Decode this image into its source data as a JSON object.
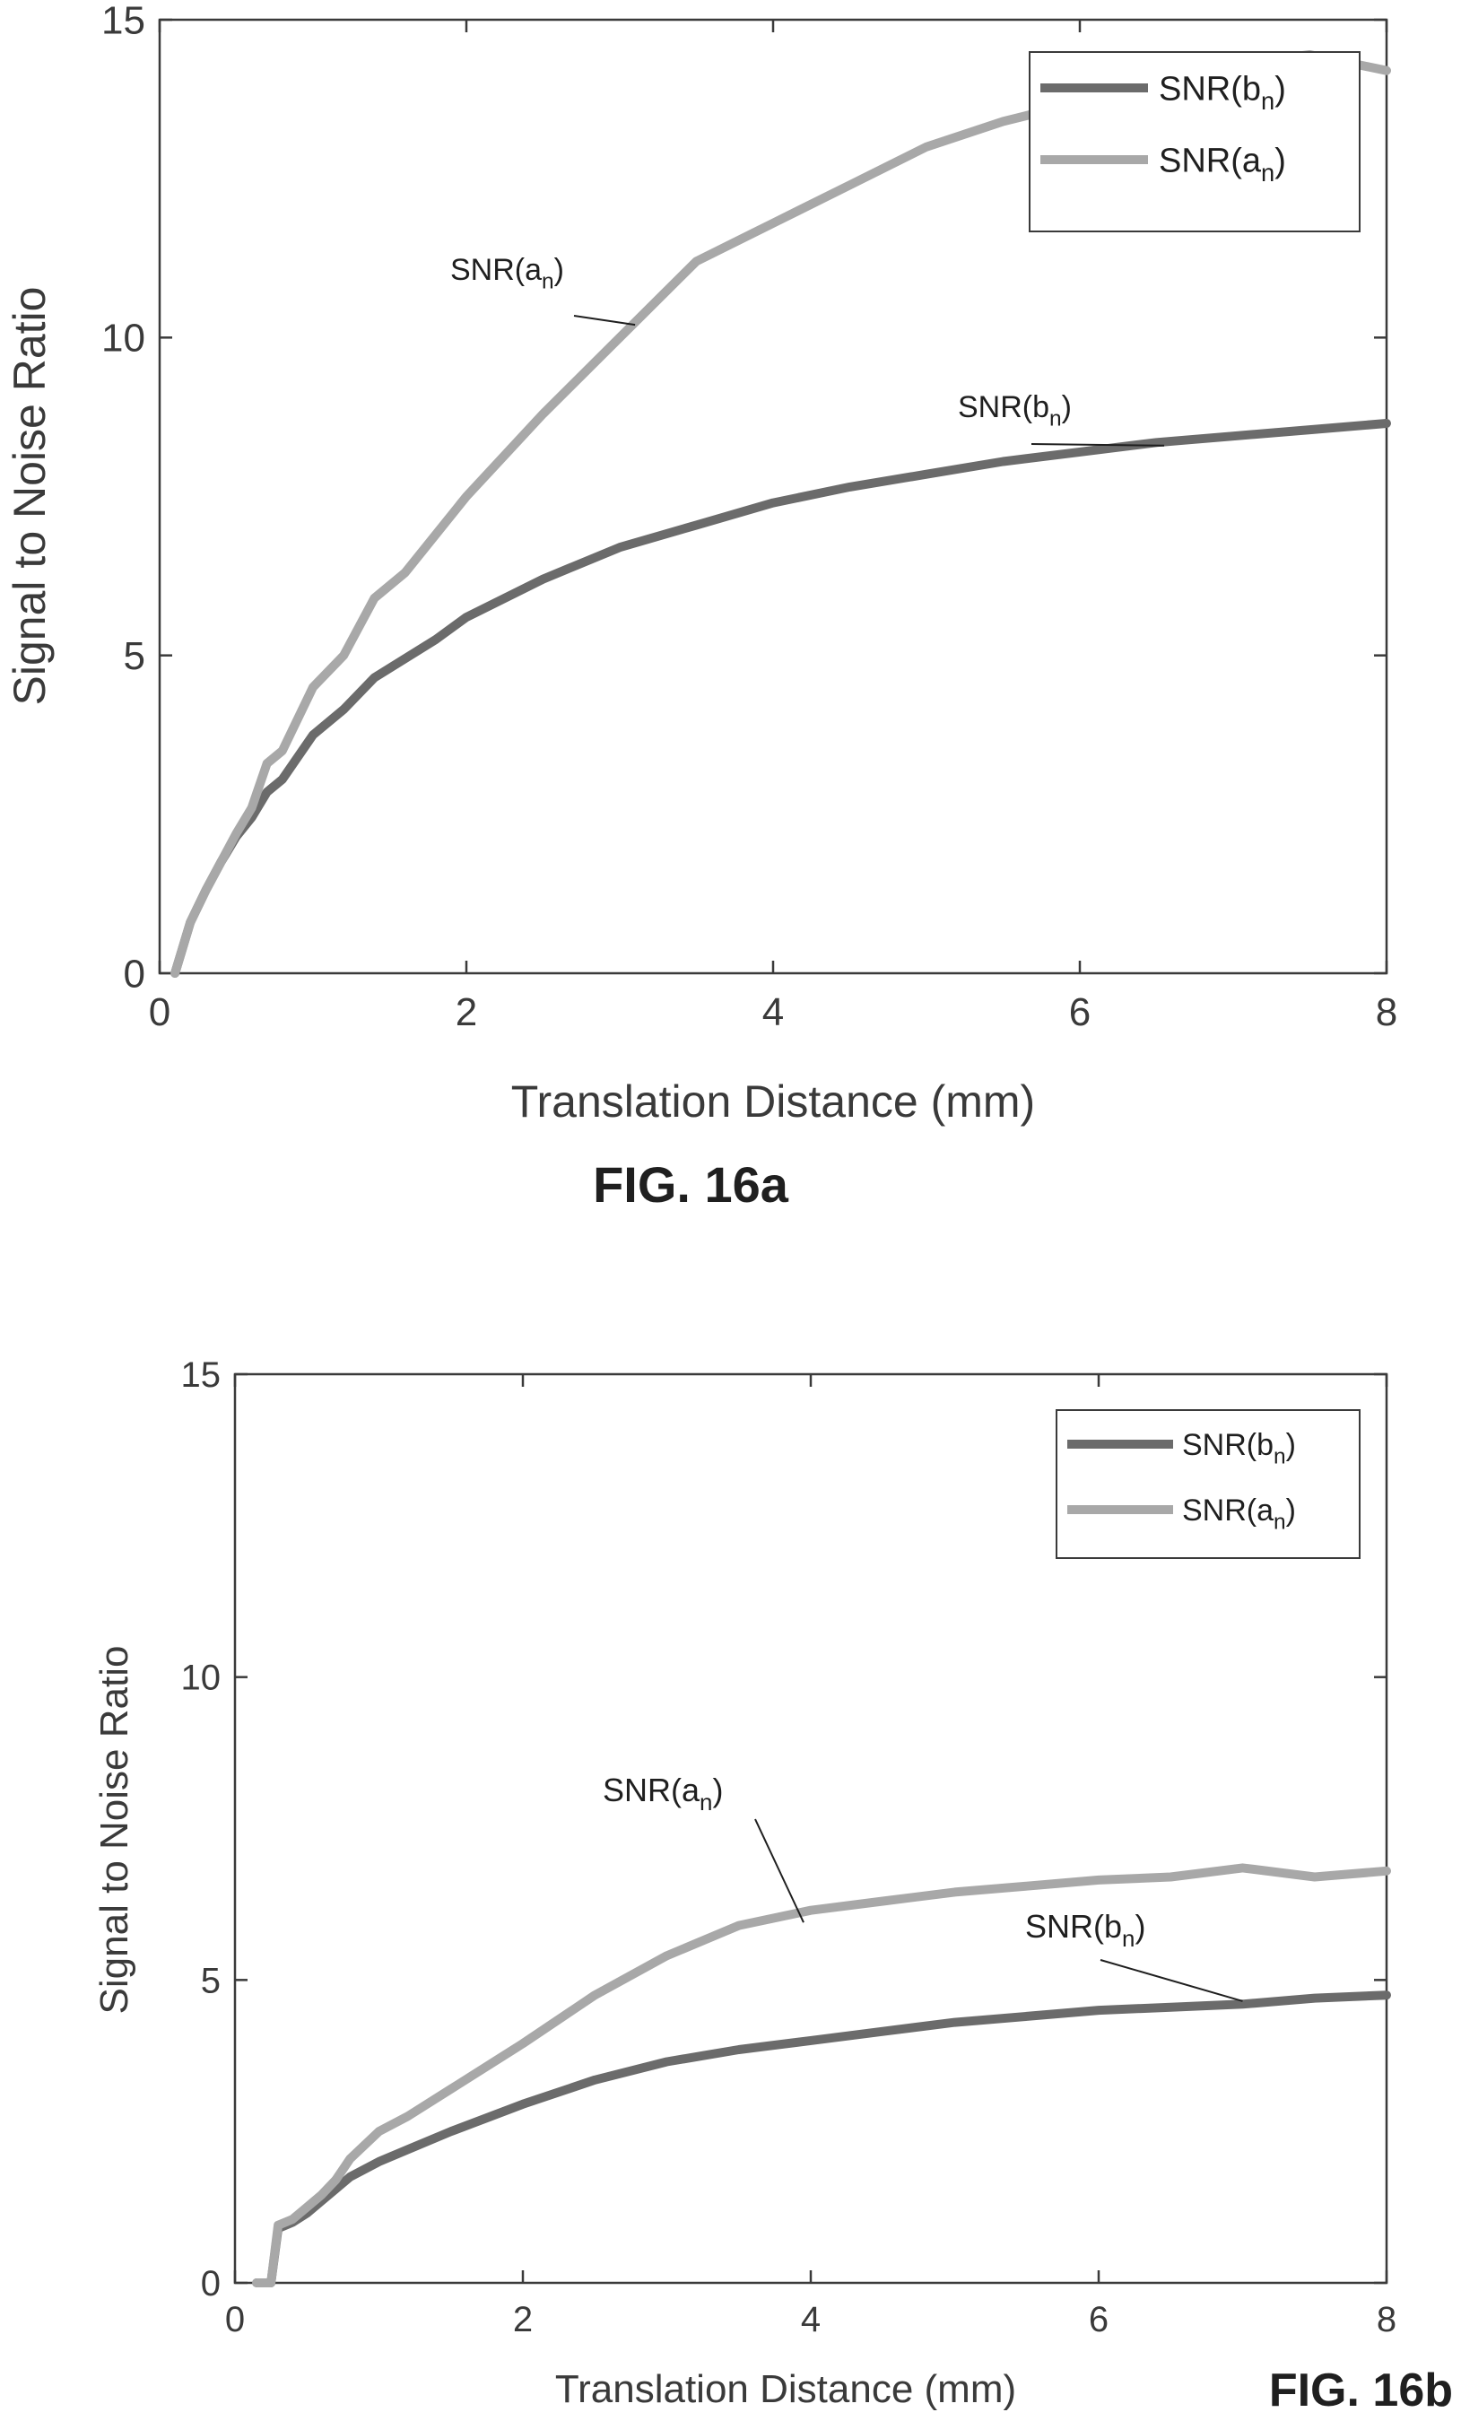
{
  "colors": {
    "series_b": "#6b6b6b",
    "series_a": "#a8a8a8",
    "axes": "#3a3a3a"
  },
  "chart_data": [
    {
      "type": "line",
      "caption": "FIG. 16a",
      "xlabel": "Translation Distance (mm)",
      "ylabel": "Signal to Noise Ratio",
      "xlim": [
        0,
        8
      ],
      "ylim": [
        0,
        15
      ],
      "xticks": [
        "0",
        "2",
        "4",
        "6",
        "8"
      ],
      "yticks": [
        "0",
        "5",
        "10",
        "15"
      ],
      "legend_position": "top-right",
      "grid": false,
      "series": [
        {
          "name": "SNR(b_n)",
          "legend": {
            "base": "SNR(b",
            "sub": "n",
            "close": ")"
          },
          "color_key": "series_b",
          "x": [
            0.1,
            0.2,
            0.3,
            0.4,
            0.5,
            0.6,
            0.7,
            0.8,
            1.0,
            1.2,
            1.4,
            1.6,
            1.8,
            2.0,
            2.5,
            3.0,
            3.5,
            4.0,
            4.5,
            5.0,
            5.5,
            6.0,
            6.5,
            7.0,
            7.5,
            8.0
          ],
          "y": [
            0,
            0.8,
            1.3,
            1.75,
            2.15,
            2.45,
            2.85,
            3.05,
            3.75,
            4.15,
            4.65,
            4.95,
            5.25,
            5.6,
            6.2,
            6.7,
            7.05,
            7.4,
            7.65,
            7.85,
            8.05,
            8.2,
            8.35,
            8.45,
            8.55,
            8.65
          ]
        },
        {
          "name": "SNR(a_n)",
          "legend": {
            "base": "SNR(a",
            "sub": "n",
            "close": ")"
          },
          "color_key": "series_a",
          "x": [
            0.1,
            0.2,
            0.3,
            0.4,
            0.5,
            0.6,
            0.7,
            0.8,
            1.0,
            1.2,
            1.4,
            1.6,
            1.8,
            2.0,
            2.5,
            3.0,
            3.5,
            4.0,
            4.5,
            5.0,
            5.5,
            6.0,
            6.5,
            7.0,
            7.5,
            8.0
          ],
          "y": [
            0,
            0.8,
            1.3,
            1.75,
            2.2,
            2.6,
            3.3,
            3.5,
            4.5,
            5.0,
            5.9,
            6.3,
            6.9,
            7.5,
            8.8,
            10.0,
            11.2,
            11.8,
            12.4,
            13.0,
            13.4,
            13.7,
            14.0,
            14.3,
            14.45,
            14.2
          ]
        }
      ],
      "annotations": [
        {
          "base": "SNR(a",
          "sub": "n",
          "close": ")",
          "x": 3.1,
          "y": 10.2
        },
        {
          "base": "SNR(b",
          "sub": "n",
          "close": ")",
          "x": 6.55,
          "y": 8.3
        }
      ]
    },
    {
      "type": "line",
      "caption": "FIG. 16b",
      "xlabel": "Translation Distance (mm)",
      "ylabel": "Signal to Noise Ratio",
      "xlim": [
        0,
        8
      ],
      "ylim": [
        0,
        15
      ],
      "xticks": [
        "0",
        "2",
        "4",
        "6",
        "8"
      ],
      "yticks": [
        "0",
        "5",
        "10",
        "15"
      ],
      "legend_position": "top-right",
      "grid": false,
      "series": [
        {
          "name": "SNR(b n)",
          "legend": {
            "base": "SNR(b",
            "sub": "n",
            "close": ")"
          },
          "color_key": "series_b",
          "x": [
            0.15,
            0.25,
            0.3,
            0.4,
            0.5,
            0.6,
            0.7,
            0.8,
            1.0,
            1.2,
            1.5,
            2.0,
            2.5,
            3.0,
            3.5,
            4.0,
            4.5,
            5.0,
            5.5,
            6.0,
            6.5,
            7.0,
            7.5,
            8.0
          ],
          "y": [
            0,
            0,
            0.9,
            1.0,
            1.15,
            1.35,
            1.55,
            1.75,
            2.0,
            2.2,
            2.5,
            2.95,
            3.35,
            3.65,
            3.85,
            4.0,
            4.15,
            4.3,
            4.4,
            4.5,
            4.55,
            4.6,
            4.7,
            4.75
          ]
        },
        {
          "name": "SNR(a n)",
          "legend": {
            "base": "SNR(a",
            "sub": "n",
            "close": ")"
          },
          "color_key": "series_a",
          "x": [
            0.15,
            0.25,
            0.3,
            0.4,
            0.5,
            0.6,
            0.7,
            0.8,
            1.0,
            1.2,
            1.5,
            2.0,
            2.5,
            3.0,
            3.5,
            4.0,
            4.5,
            5.0,
            5.5,
            6.0,
            6.5,
            7.0,
            7.5,
            8.0
          ],
          "y": [
            0,
            0,
            0.95,
            1.05,
            1.25,
            1.45,
            1.7,
            2.05,
            2.5,
            2.75,
            3.2,
            3.95,
            4.75,
            5.4,
            5.9,
            6.15,
            6.3,
            6.45,
            6.55,
            6.65,
            6.7,
            6.85,
            6.7,
            6.8
          ]
        }
      ],
      "annotations": [
        {
          "base": "SNR(a",
          "sub": "n",
          "close": ")",
          "x": 3.95,
          "y": 5.95
        },
        {
          "base": "SNR(b",
          "sub": "n",
          "close": ")",
          "x": 7.0,
          "y": 4.65
        }
      ]
    }
  ]
}
